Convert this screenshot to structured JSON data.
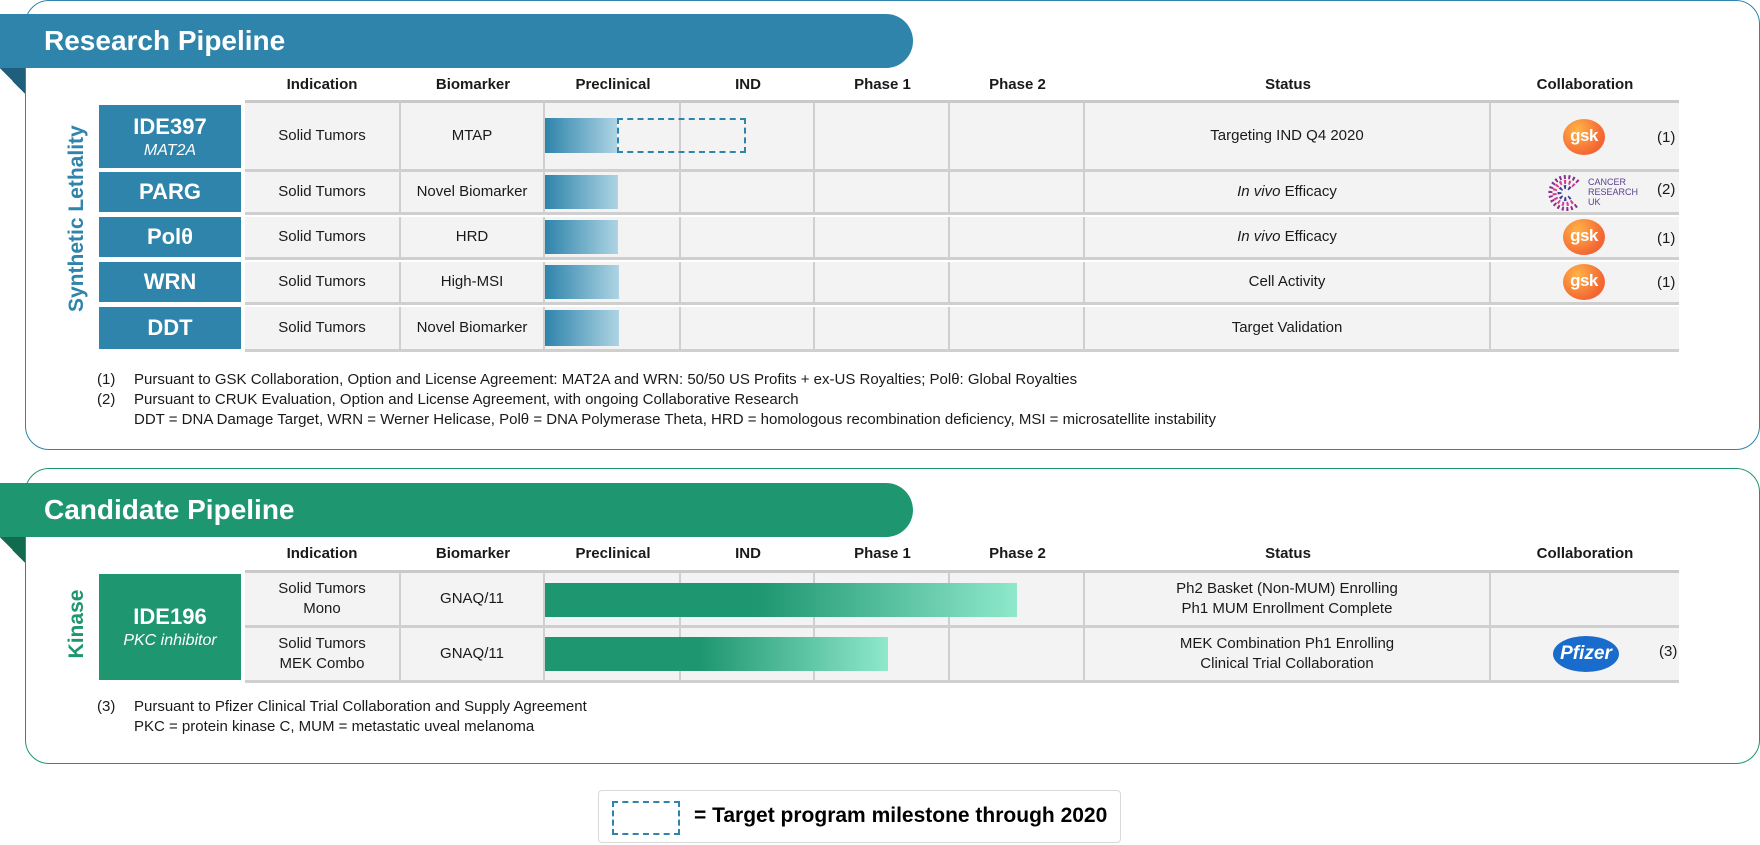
{
  "research": {
    "title": "Research Pipeline",
    "category": "Synthetic Lethality",
    "headers": [
      "Indication",
      "Biomarker",
      "Preclinical",
      "IND",
      "Phase 1",
      "Phase 2",
      "Status",
      "Collaboration"
    ],
    "rows": [
      {
        "name": "IDE397",
        "sub": "MAT2A",
        "indication": "Solid Tumors",
        "biomarker": "MTAP",
        "status": "Targeting IND Q4 2020",
        "collab": "gsk",
        "ref": "(1)",
        "progress": "Preclinical",
        "milestone_target": "IND"
      },
      {
        "name": "PARG",
        "indication": "Solid Tumors",
        "biomarker": "Novel Biomarker",
        "status_em": "In vivo",
        "status_rest": " Efficacy",
        "collab": "CANCER RESEARCH UK",
        "ref": "(2)",
        "progress": "Preclinical"
      },
      {
        "name": "Polθ",
        "indication": "Solid Tumors",
        "biomarker": "HRD",
        "status_em": "In vivo",
        "status_rest": " Efficacy",
        "collab": "gsk",
        "ref": "(1)",
        "progress": "Preclinical"
      },
      {
        "name": "WRN",
        "indication": "Solid Tumors",
        "biomarker": "High-MSI",
        "status": "Cell Activity",
        "collab": "gsk",
        "ref": "(1)",
        "progress": "Preclinical"
      },
      {
        "name": "DDT",
        "indication": "Solid Tumors",
        "biomarker": "Novel Biomarker",
        "status": "Target Validation",
        "progress": "Preclinical"
      }
    ],
    "footnotes": [
      {
        "num": "(1)",
        "text": "Pursuant to GSK Collaboration, Option and License Agreement: MAT2A and WRN: 50/50 US Profits + ex-US Royalties; Polθ: Global Royalties"
      },
      {
        "num": "(2)",
        "text": "Pursuant to CRUK Evaluation, Option and License Agreement, with ongoing Collaborative Research"
      },
      {
        "num": "",
        "text": "DDT = DNA Damage Target, WRN = Werner Helicase, Polθ = DNA Polymerase Theta, HRD = homologous recombination deficiency, MSI = microsatellite instability"
      }
    ]
  },
  "candidate": {
    "title": "Candidate Pipeline",
    "category": "Kinase",
    "headers": [
      "Indication",
      "Biomarker",
      "Preclinical",
      "IND",
      "Phase 1",
      "Phase 2",
      "Status",
      "Collaboration"
    ],
    "program": {
      "name": "IDE196",
      "sub": "PKC inhibitor"
    },
    "rows": [
      {
        "indication_1": "Solid Tumors",
        "indication_2": "Mono",
        "biomarker": "GNAQ/11",
        "status_1": "Ph2 Basket (Non-MUM) Enrolling",
        "status_2": "Ph1 MUM Enrollment Complete",
        "progress": "Phase 2"
      },
      {
        "indication_1": "Solid Tumors",
        "indication_2": "MEK Combo",
        "biomarker": "GNAQ/11",
        "status_1": "MEK Combination Ph1 Enrolling",
        "status_2": "Clinical Trial Collaboration",
        "collab": "Pfizer",
        "ref": "(3)",
        "progress": "Phase 1"
      }
    ],
    "footnotes": [
      {
        "num": "(3)",
        "text": "Pursuant to Pfizer Clinical Trial Collaboration and Supply Agreement"
      },
      {
        "num": "",
        "text": "PKC = protein kinase C, MUM = metastatic uveal melanoma"
      }
    ]
  },
  "legend": {
    "text": "= Target program milestone through 2020"
  },
  "colors": {
    "research": "#2e84aa",
    "candidate": "#1e9670",
    "gsk": "#f36633",
    "pfizer": "#1a6ccc"
  }
}
